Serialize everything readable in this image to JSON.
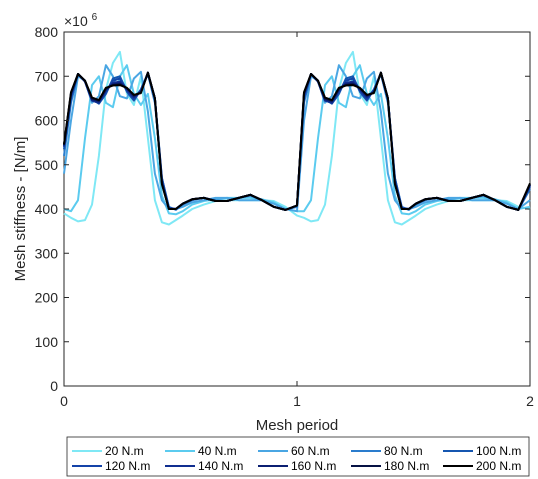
{
  "chart_data": {
    "type": "line",
    "xlabel": "Mesh period",
    "ylabel": "Mesh stiffness - [N/m]",
    "y_exponent_label": "×10",
    "y_exponent_power": "6",
    "xlim": [
      0,
      2
    ],
    "ylim": [
      0,
      800
    ],
    "xticks": [
      "0",
      "1",
      "2"
    ],
    "yticks": [
      "0",
      "100",
      "200",
      "300",
      "400",
      "500",
      "600",
      "700",
      "800"
    ],
    "grid": false,
    "legend_position": "bottom",
    "series": [
      {
        "name": "20 N.m",
        "color": "#7fe8f5",
        "x": [
          0,
          0.03,
          0.06,
          0.09,
          0.12,
          0.15,
          0.18,
          0.21,
          0.24,
          0.27,
          0.3,
          0.33,
          0.36,
          0.39,
          0.42,
          0.45,
          0.48,
          0.51,
          0.55,
          0.6,
          0.65,
          0.7,
          0.75,
          0.8,
          0.85,
          0.9,
          0.95,
          1.0,
          1.03,
          1.06,
          1.09,
          1.12,
          1.15,
          1.18,
          1.21,
          1.24,
          1.27,
          1.3,
          1.33,
          1.36,
          1.39,
          1.42,
          1.45,
          1.48,
          1.51,
          1.55,
          1.6,
          1.65,
          1.7,
          1.75,
          1.8,
          1.85,
          1.9,
          1.95,
          2.0
        ],
        "y": [
          390,
          380,
          372,
          375,
          410,
          520,
          670,
          730,
          755,
          660,
          635,
          700,
          560,
          420,
          370,
          365,
          375,
          385,
          400,
          410,
          418,
          420,
          420,
          420,
          420,
          418,
          405,
          385,
          380,
          372,
          375,
          410,
          520,
          670,
          730,
          755,
          660,
          635,
          700,
          560,
          420,
          370,
          365,
          375,
          385,
          400,
          410,
          418,
          420,
          420,
          420,
          420,
          418,
          405,
          400
        ]
      },
      {
        "name": "40 N.m",
        "color": "#5bcbef",
        "x": [
          0,
          0.03,
          0.06,
          0.09,
          0.12,
          0.15,
          0.18,
          0.21,
          0.24,
          0.27,
          0.3,
          0.33,
          0.36,
          0.39,
          0.42,
          0.45,
          0.48,
          0.51,
          0.55,
          0.6,
          0.65,
          0.7,
          0.75,
          0.8,
          0.85,
          0.9,
          0.95,
          1.0,
          1.03,
          1.06,
          1.09,
          1.12,
          1.15,
          1.18,
          1.21,
          1.24,
          1.27,
          1.3,
          1.33,
          1.36,
          1.39,
          1.42,
          1.45,
          1.48,
          1.51,
          1.55,
          1.6,
          1.65,
          1.7,
          1.75,
          1.8,
          1.85,
          1.9,
          1.95,
          2.0
        ],
        "y": [
          400,
          395,
          420,
          560,
          680,
          700,
          640,
          630,
          700,
          725,
          660,
          635,
          660,
          560,
          430,
          390,
          388,
          395,
          410,
          418,
          422,
          425,
          425,
          425,
          422,
          415,
          400,
          395,
          395,
          420,
          560,
          680,
          700,
          640,
          630,
          700,
          725,
          660,
          635,
          660,
          560,
          430,
          390,
          388,
          395,
          410,
          418,
          422,
          425,
          425,
          425,
          422,
          415,
          400,
          405
        ]
      },
      {
        "name": "60 N.m",
        "color": "#4aa6e3",
        "x": [
          0,
          0.03,
          0.06,
          0.09,
          0.12,
          0.15,
          0.18,
          0.21,
          0.24,
          0.27,
          0.3,
          0.33,
          0.36,
          0.39,
          0.42,
          0.45,
          0.48,
          0.51,
          0.55,
          0.6,
          0.65,
          0.7,
          0.75,
          0.8,
          0.85,
          0.9,
          0.95,
          1.0,
          1.03,
          1.06,
          1.09,
          1.12,
          1.15,
          1.18,
          1.21,
          1.24,
          1.27,
          1.3,
          1.33,
          1.36,
          1.39,
          1.42,
          1.45,
          1.48,
          1.51,
          1.55,
          1.6,
          1.65,
          1.7,
          1.75,
          1.8,
          1.85,
          1.9,
          1.95,
          2.0
        ],
        "y": [
          480,
          600,
          700,
          690,
          640,
          655,
          725,
          700,
          655,
          650,
          695,
          710,
          620,
          480,
          420,
          400,
          400,
          405,
          415,
          420,
          425,
          425,
          420,
          420,
          420,
          412,
          400,
          395,
          600,
          700,
          690,
          640,
          655,
          725,
          700,
          655,
          650,
          695,
          710,
          620,
          480,
          420,
          400,
          400,
          405,
          415,
          420,
          425,
          425,
          420,
          420,
          420,
          412,
          400,
          420
        ]
      },
      {
        "name": "80 N.m",
        "color": "#2a7ccd",
        "x": [
          0,
          0.03,
          0.06,
          0.09,
          0.12,
          0.15,
          0.18,
          0.21,
          0.24,
          0.27,
          0.3,
          0.33,
          0.36,
          0.39,
          0.42,
          0.45,
          0.48,
          0.51,
          0.55,
          0.6,
          0.65,
          0.7,
          0.75,
          0.8,
          0.85,
          0.9,
          0.95,
          1.0,
          1.03,
          1.06,
          1.09,
          1.12,
          1.15,
          1.18,
          1.21,
          1.24,
          1.27,
          1.3,
          1.33,
          1.36,
          1.39,
          1.42,
          1.45,
          1.48,
          1.51,
          1.55,
          1.6,
          1.65,
          1.7,
          1.75,
          1.8,
          1.85,
          1.9,
          1.95,
          2.0
        ],
        "y": [
          520,
          640,
          705,
          690,
          650,
          640,
          665,
          690,
          695,
          670,
          650,
          670,
          705,
          640,
          470,
          405,
          398,
          410,
          420,
          425,
          420,
          418,
          425,
          430,
          420,
          405,
          398,
          405,
          640,
          705,
          690,
          650,
          640,
          665,
          690,
          695,
          670,
          650,
          670,
          705,
          640,
          470,
          405,
          398,
          410,
          420,
          425,
          420,
          418,
          425,
          430,
          420,
          405,
          398,
          445
        ]
      },
      {
        "name": "100 N.m",
        "color": "#1556b0",
        "x": [
          0,
          0.03,
          0.06,
          0.09,
          0.12,
          0.15,
          0.18,
          0.21,
          0.24,
          0.27,
          0.3,
          0.33,
          0.36,
          0.39,
          0.42,
          0.45,
          0.48,
          0.51,
          0.55,
          0.6,
          0.65,
          0.7,
          0.75,
          0.8,
          0.85,
          0.9,
          0.95,
          1.0,
          1.03,
          1.06,
          1.09,
          1.12,
          1.15,
          1.18,
          1.21,
          1.24,
          1.27,
          1.3,
          1.33,
          1.36,
          1.39,
          1.42,
          1.45,
          1.48,
          1.51,
          1.55,
          1.6,
          1.65,
          1.7,
          1.75,
          1.8,
          1.85,
          1.9,
          1.95,
          2.0
        ],
        "y": [
          535,
          650,
          705,
          690,
          648,
          638,
          660,
          695,
          700,
          665,
          645,
          670,
          705,
          650,
          470,
          403,
          400,
          412,
          422,
          425,
          418,
          418,
          425,
          432,
          420,
          405,
          398,
          408,
          650,
          705,
          690,
          648,
          638,
          660,
          695,
          700,
          665,
          645,
          670,
          705,
          650,
          470,
          403,
          400,
          412,
          422,
          425,
          418,
          418,
          425,
          432,
          420,
          405,
          398,
          450
        ]
      },
      {
        "name": "120 N.m",
        "color": "#1443a8",
        "x": [
          0,
          0.03,
          0.06,
          0.09,
          0.12,
          0.15,
          0.18,
          0.21,
          0.24,
          0.27,
          0.3,
          0.33,
          0.36,
          0.39,
          0.42,
          0.45,
          0.48,
          0.51,
          0.55,
          0.6,
          0.65,
          0.7,
          0.75,
          0.8,
          0.85,
          0.9,
          0.95,
          1.0,
          1.03,
          1.06,
          1.09,
          1.12,
          1.15,
          1.18,
          1.21,
          1.24,
          1.27,
          1.3,
          1.33,
          1.36,
          1.39,
          1.42,
          1.45,
          1.48,
          1.51,
          1.55,
          1.6,
          1.65,
          1.7,
          1.75,
          1.8,
          1.85,
          1.9,
          1.95,
          2.0
        ],
        "y": [
          540,
          655,
          705,
          688,
          645,
          640,
          665,
          690,
          695,
          668,
          648,
          668,
          708,
          650,
          465,
          402,
          400,
          412,
          422,
          425,
          418,
          418,
          425,
          432,
          420,
          405,
          398,
          408,
          655,
          705,
          688,
          645,
          640,
          665,
          690,
          695,
          668,
          648,
          668,
          708,
          650,
          465,
          402,
          400,
          412,
          422,
          425,
          418,
          418,
          425,
          432,
          420,
          405,
          398,
          452
        ]
      },
      {
        "name": "140 N.m",
        "color": "#102e90",
        "x": [
          0,
          0.03,
          0.06,
          0.09,
          0.12,
          0.15,
          0.18,
          0.21,
          0.24,
          0.27,
          0.3,
          0.33,
          0.36,
          0.39,
          0.42,
          0.45,
          0.48,
          0.51,
          0.55,
          0.6,
          0.65,
          0.7,
          0.75,
          0.8,
          0.85,
          0.9,
          0.95,
          1.0,
          1.03,
          1.06,
          1.09,
          1.12,
          1.15,
          1.18,
          1.21,
          1.24,
          1.27,
          1.3,
          1.33,
          1.36,
          1.39,
          1.42,
          1.45,
          1.48,
          1.51,
          1.55,
          1.6,
          1.65,
          1.7,
          1.75,
          1.8,
          1.85,
          1.9,
          1.95,
          2.0
        ],
        "y": [
          542,
          658,
          705,
          688,
          645,
          640,
          668,
          685,
          688,
          670,
          652,
          666,
          708,
          650,
          462,
          401,
          400,
          412,
          422,
          425,
          418,
          418,
          425,
          432,
          420,
          405,
          398,
          408,
          658,
          705,
          688,
          645,
          640,
          668,
          685,
          688,
          670,
          652,
          666,
          708,
          650,
          462,
          401,
          400,
          412,
          422,
          425,
          418,
          418,
          425,
          432,
          420,
          405,
          398,
          454
        ]
      },
      {
        "name": "160 N.m",
        "color": "#0b1f72",
        "x": [
          0,
          0.03,
          0.06,
          0.09,
          0.12,
          0.15,
          0.18,
          0.21,
          0.24,
          0.27,
          0.3,
          0.33,
          0.36,
          0.39,
          0.42,
          0.45,
          0.48,
          0.51,
          0.55,
          0.6,
          0.65,
          0.7,
          0.75,
          0.8,
          0.85,
          0.9,
          0.95,
          1.0,
          1.03,
          1.06,
          1.09,
          1.12,
          1.15,
          1.18,
          1.21,
          1.24,
          1.27,
          1.3,
          1.33,
          1.36,
          1.39,
          1.42,
          1.45,
          1.48,
          1.51,
          1.55,
          1.6,
          1.65,
          1.7,
          1.75,
          1.8,
          1.85,
          1.9,
          1.95,
          2.0
        ],
        "y": [
          544,
          660,
          705,
          690,
          648,
          643,
          670,
          682,
          684,
          672,
          655,
          664,
          708,
          650,
          460,
          400,
          400,
          412,
          422,
          425,
          418,
          418,
          425,
          432,
          420,
          405,
          398,
          408,
          660,
          705,
          690,
          648,
          643,
          670,
          682,
          684,
          672,
          655,
          664,
          708,
          650,
          460,
          400,
          400,
          412,
          422,
          425,
          418,
          418,
          425,
          432,
          420,
          405,
          398,
          455
        ]
      },
      {
        "name": "180 N.m",
        "color": "#061244",
        "x": [
          0,
          0.03,
          0.06,
          0.09,
          0.12,
          0.15,
          0.18,
          0.21,
          0.24,
          0.27,
          0.3,
          0.33,
          0.36,
          0.39,
          0.42,
          0.45,
          0.48,
          0.51,
          0.55,
          0.6,
          0.65,
          0.7,
          0.75,
          0.8,
          0.85,
          0.9,
          0.95,
          1.0,
          1.03,
          1.06,
          1.09,
          1.12,
          1.15,
          1.18,
          1.21,
          1.24,
          1.27,
          1.3,
          1.33,
          1.36,
          1.39,
          1.42,
          1.45,
          1.48,
          1.51,
          1.55,
          1.6,
          1.65,
          1.7,
          1.75,
          1.8,
          1.85,
          1.9,
          1.95,
          2.0
        ],
        "y": [
          545,
          662,
          705,
          690,
          650,
          645,
          672,
          680,
          682,
          673,
          657,
          663,
          708,
          650,
          458,
          400,
          400,
          412,
          422,
          425,
          418,
          418,
          425,
          432,
          420,
          405,
          398,
          408,
          662,
          705,
          690,
          650,
          645,
          672,
          680,
          682,
          673,
          657,
          663,
          708,
          650,
          458,
          400,
          400,
          412,
          422,
          425,
          418,
          418,
          425,
          432,
          420,
          405,
          398,
          456
        ]
      },
      {
        "name": "200 N.m",
        "color": "#000000",
        "x": [
          0,
          0.03,
          0.06,
          0.09,
          0.12,
          0.15,
          0.18,
          0.21,
          0.24,
          0.27,
          0.3,
          0.33,
          0.36,
          0.39,
          0.42,
          0.45,
          0.48,
          0.51,
          0.55,
          0.6,
          0.65,
          0.7,
          0.75,
          0.8,
          0.85,
          0.9,
          0.95,
          1.0,
          1.03,
          1.06,
          1.09,
          1.12,
          1.15,
          1.18,
          1.21,
          1.24,
          1.27,
          1.3,
          1.33,
          1.36,
          1.39,
          1.42,
          1.45,
          1.48,
          1.51,
          1.55,
          1.6,
          1.65,
          1.7,
          1.75,
          1.8,
          1.85,
          1.9,
          1.95,
          2.0
        ],
        "y": [
          546,
          664,
          705,
          690,
          652,
          646,
          674,
          679,
          680,
          674,
          658,
          662,
          708,
          650,
          456,
          400,
          400,
          412,
          422,
          425,
          418,
          418,
          425,
          432,
          420,
          405,
          398,
          408,
          664,
          705,
          690,
          652,
          646,
          674,
          679,
          680,
          674,
          658,
          662,
          708,
          650,
          456,
          400,
          400,
          412,
          422,
          425,
          418,
          418,
          425,
          432,
          420,
          405,
          398,
          458
        ]
      }
    ]
  }
}
